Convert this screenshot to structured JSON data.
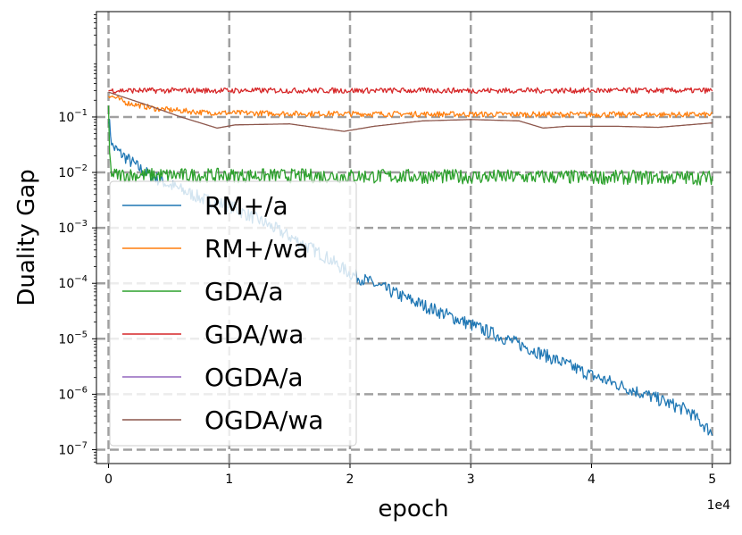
{
  "chart_data": {
    "type": "line",
    "title": "",
    "xlabel": "epoch",
    "ylabel": "Duality Gap",
    "x_multiplier_label": "1e4",
    "xlim": [
      -1000,
      51500
    ],
    "ylim_log10": [
      -7.25,
      0.9
    ],
    "yscale": "log",
    "grid": true,
    "legend_position": "lower-left",
    "x_ticks": [
      {
        "value": 0,
        "label": "0"
      },
      {
        "value": 10000,
        "label": "1"
      },
      {
        "value": 20000,
        "label": "2"
      },
      {
        "value": 30000,
        "label": "3"
      },
      {
        "value": 40000,
        "label": "4"
      },
      {
        "value": 50000,
        "label": "5"
      }
    ],
    "y_ticks": [
      {
        "exp": -1,
        "base": "10",
        "sup": "−1"
      },
      {
        "exp": -2,
        "base": "10",
        "sup": "−2"
      },
      {
        "exp": -3,
        "base": "10",
        "sup": "−3"
      },
      {
        "exp": -4,
        "base": "10",
        "sup": "−4"
      },
      {
        "exp": -5,
        "base": "10",
        "sup": "−5"
      },
      {
        "exp": -6,
        "base": "10",
        "sup": "−6"
      },
      {
        "exp": -7,
        "base": "10",
        "sup": "−7"
      }
    ],
    "series": [
      {
        "name": "RM+/a",
        "color": "#1f77b4",
        "noise": 0.12,
        "points": [
          [
            0,
            0.1
          ],
          [
            300,
            0.03
          ],
          [
            1000,
            0.022
          ],
          [
            3000,
            0.01
          ],
          [
            5000,
            0.006
          ],
          [
            8000,
            0.0032
          ],
          [
            10000,
            0.0025
          ],
          [
            13000,
            0.0012
          ],
          [
            15000,
            0.0007
          ],
          [
            18000,
            0.0003
          ],
          [
            20000,
            0.00015
          ],
          [
            25000,
            5e-05
          ],
          [
            30000,
            1.8e-05
          ],
          [
            35000,
            6.5e-06
          ],
          [
            40000,
            2.2e-06
          ],
          [
            45000,
            9e-07
          ],
          [
            48000,
            5e-07
          ],
          [
            50000,
            2e-07
          ]
        ]
      },
      {
        "name": "RM+/wa",
        "color": "#ff7f0e",
        "noise": 0.05,
        "points": [
          [
            0,
            0.25
          ],
          [
            1500,
            0.18
          ],
          [
            4000,
            0.14
          ],
          [
            8000,
            0.12
          ],
          [
            15000,
            0.115
          ],
          [
            30000,
            0.112
          ],
          [
            50000,
            0.11
          ]
        ]
      },
      {
        "name": "GDA/a",
        "color": "#2ca02c",
        "noise": 0.13,
        "points": [
          [
            0,
            0.15
          ],
          [
            100,
            0.015
          ],
          [
            300,
            0.009
          ],
          [
            50000,
            0.008
          ]
        ]
      },
      {
        "name": "GDA/wa",
        "color": "#d62728",
        "noise": 0.05,
        "points": [
          [
            0,
            0.3
          ],
          [
            50000,
            0.3
          ]
        ]
      },
      {
        "name": "OGDA/a",
        "color": "#9467bd",
        "noise": 0,
        "points": []
      },
      {
        "name": "OGDA/wa",
        "color": "#8c564b",
        "noise": 0,
        "points": [
          [
            0,
            0.28
          ],
          [
            3000,
            0.17
          ],
          [
            6000,
            0.1
          ],
          [
            9000,
            0.063
          ],
          [
            10500,
            0.072
          ],
          [
            15000,
            0.075
          ],
          [
            19500,
            0.055
          ],
          [
            22000,
            0.068
          ],
          [
            26000,
            0.085
          ],
          [
            30000,
            0.09
          ],
          [
            34000,
            0.085
          ],
          [
            36000,
            0.063
          ],
          [
            38000,
            0.068
          ],
          [
            42000,
            0.068
          ],
          [
            45500,
            0.065
          ],
          [
            50000,
            0.078
          ]
        ]
      }
    ]
  }
}
